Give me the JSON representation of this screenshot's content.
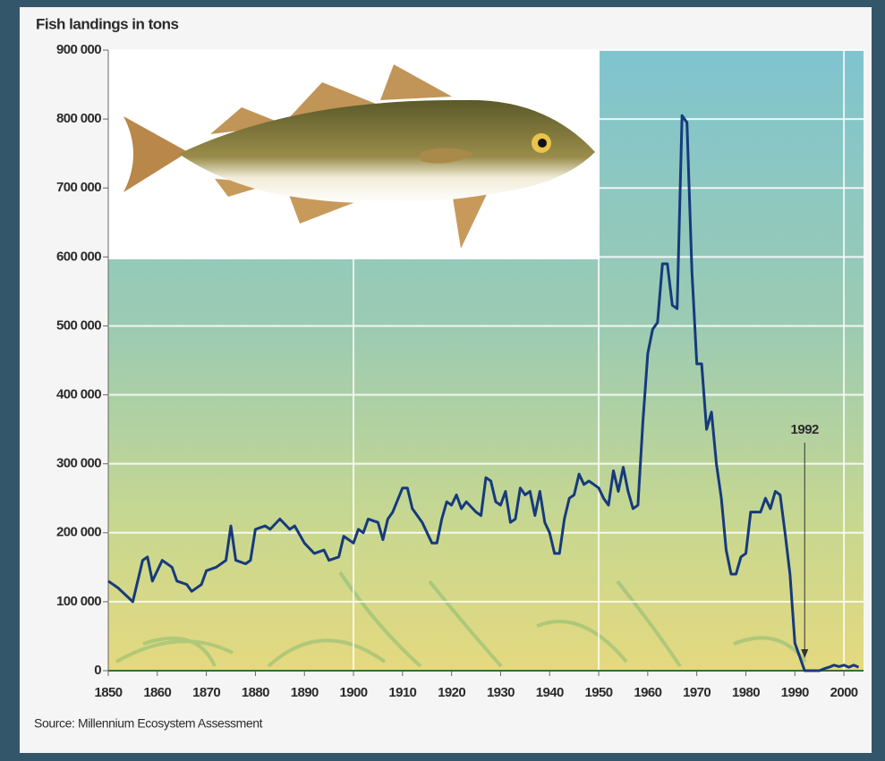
{
  "chart_data": {
    "type": "line",
    "title": "Fish landings in tons",
    "source": "Source: Millennium Ecosystem Assessment",
    "x": [
      1850,
      1852,
      1855,
      1857,
      1858,
      1859,
      1861,
      1863,
      1864,
      1866,
      1867,
      1869,
      1870,
      1872,
      1874,
      1875,
      1876,
      1878,
      1879,
      1880,
      1882,
      1883,
      1885,
      1887,
      1888,
      1890,
      1892,
      1894,
      1895,
      1897,
      1898,
      1900,
      1901,
      1902,
      1903,
      1905,
      1906,
      1907,
      1908,
      1910,
      1911,
      1912,
      1914,
      1916,
      1917,
      1918,
      1919,
      1920,
      1921,
      1922,
      1923,
      1925,
      1926,
      1927,
      1928,
      1929,
      1930,
      1931,
      1932,
      1933,
      1934,
      1935,
      1936,
      1937,
      1938,
      1939,
      1940,
      1941,
      1942,
      1943,
      1944,
      1945,
      1946,
      1947,
      1948,
      1950,
      1951,
      1952,
      1953,
      1954,
      1955,
      1956,
      1957,
      1958,
      1959,
      1960,
      1961,
      1962,
      1963,
      1964,
      1965,
      1966,
      1967,
      1968,
      1969,
      1970,
      1971,
      1972,
      1973,
      1974,
      1975,
      1976,
      1977,
      1978,
      1979,
      1980,
      1981,
      1982,
      1983,
      1984,
      1985,
      1986,
      1987,
      1988,
      1989,
      1990,
      1991,
      1992,
      1993,
      1994,
      1995,
      1996,
      1997,
      1998,
      1999,
      2000,
      2001,
      2002,
      2003
    ],
    "values": [
      130000,
      120000,
      100000,
      160000,
      165000,
      130000,
      160000,
      150000,
      130000,
      125000,
      115000,
      125000,
      145000,
      150000,
      160000,
      210000,
      160000,
      155000,
      160000,
      205000,
      210000,
      205000,
      220000,
      205000,
      210000,
      185000,
      170000,
      175000,
      160000,
      165000,
      195000,
      185000,
      205000,
      200000,
      220000,
      215000,
      190000,
      220000,
      230000,
      265000,
      265000,
      235000,
      215000,
      185000,
      185000,
      220000,
      245000,
      240000,
      255000,
      235000,
      245000,
      230000,
      225000,
      280000,
      275000,
      245000,
      240000,
      260000,
      215000,
      220000,
      265000,
      255000,
      260000,
      225000,
      260000,
      215000,
      200000,
      170000,
      170000,
      220000,
      250000,
      255000,
      285000,
      270000,
      275000,
      265000,
      250000,
      240000,
      290000,
      260000,
      295000,
      260000,
      235000,
      240000,
      360000,
      460000,
      495000,
      505000,
      590000,
      590000,
      530000,
      525000,
      805000,
      795000,
      580000,
      445000,
      445000,
      350000,
      375000,
      300000,
      250000,
      175000,
      140000,
      140000,
      165000,
      170000,
      230000,
      230000,
      230000,
      250000,
      235000,
      260000,
      255000,
      200000,
      140000,
      40000,
      20000,
      0,
      0,
      0,
      0,
      3000,
      5000,
      8000,
      6000,
      8000,
      5000,
      8000,
      5000
    ],
    "color": "#163a7c",
    "xlim": [
      1850,
      2004
    ],
    "ylim": [
      0,
      900000
    ],
    "xticks": [
      1850,
      1860,
      1870,
      1880,
      1890,
      1900,
      1910,
      1920,
      1930,
      1940,
      1950,
      1960,
      1970,
      1980,
      1990,
      2000
    ],
    "yticks": [
      0,
      {
        "value": 100000,
        "label": "100 000"
      },
      {
        "value": 200000,
        "label": "200 000"
      },
      {
        "value": 300000,
        "label": "300 000"
      },
      {
        "value": 400000,
        "label": "400 000"
      },
      {
        "value": 500000,
        "label": "500 000"
      },
      {
        "value": 600000,
        "label": "600 000"
      },
      {
        "value": 700000,
        "label": "700 000"
      },
      {
        "value": 800000,
        "label": "800 000"
      },
      {
        "value": 900000,
        "label": "900 000"
      }
    ],
    "grid": true,
    "annotations": [
      {
        "text": "1992",
        "x": 1992
      }
    ]
  }
}
